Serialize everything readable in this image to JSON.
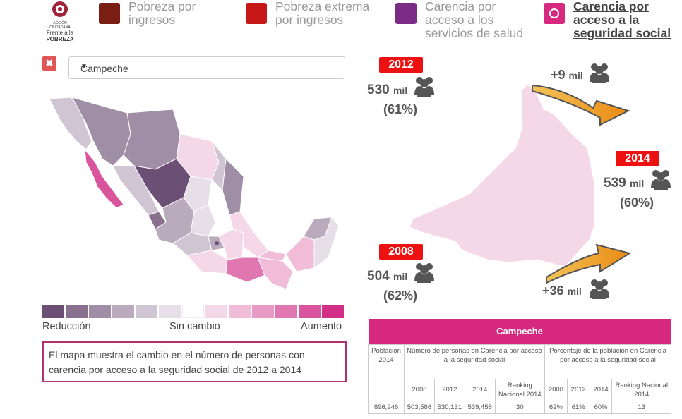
{
  "logo": {
    "line1": "ACCIÓN CIUDADANA",
    "line2": "Frente a la",
    "line3": "POBREZA"
  },
  "legend": [
    {
      "label": "Pobreza por ingresos",
      "color": "#7a1e13"
    },
    {
      "label": "Pobreza extrema por ingresos",
      "color": "#c71818"
    },
    {
      "label": "Carencia por acceso a los servicios de salud",
      "color": "#7b2a86"
    },
    {
      "label": "Carencia por acceso a la seguridad social",
      "color": "#d6287f"
    }
  ],
  "filter": {
    "clear": "✖",
    "selected": "Campeche",
    "arrow": "▼"
  },
  "scale": {
    "colors": [
      "#6b4f75",
      "#8a708f",
      "#a08ea6",
      "#b9aabd",
      "#d0c6d3",
      "#e6dfe8",
      "#ffffff",
      "#f5d8e7",
      "#f0bcd8",
      "#e89ac4",
      "#e077b0",
      "#d9549c",
      "#d22f88"
    ],
    "low": "Reducción",
    "mid": "Sin cambio",
    "high": "Aumento"
  },
  "note": "El mapa muestra el cambio en el número de personas con carencia por acceso a la seguridad social de 2012 a 2014",
  "detail": {
    "y2012": {
      "year": "2012",
      "value": "530",
      "unit": "mil",
      "pct": "(61%)"
    },
    "y2014": {
      "year": "2014",
      "value": "539",
      "unit": "mil",
      "pct": "(60%)"
    },
    "y2008": {
      "year": "2008",
      "value": "504",
      "unit": "mil",
      "pct": "(62%)"
    },
    "delta_top": {
      "value": "+9",
      "unit": "mil"
    },
    "delta_bottom": {
      "value": "+36",
      "unit": "mil"
    }
  },
  "table": {
    "title": "Campeche",
    "pop_header": "Población 2014",
    "num_header": "Número de personas en Carencia por acceso a la seguridad social",
    "pct_header": "Porcentaje de la población en Carencia por acceso a la seguridad social",
    "sub": [
      "2008",
      "2012",
      "2014",
      "Ranking Nacional 2014",
      "2008",
      "2012",
      "2014",
      "Ranking Nacional 2014"
    ],
    "row": [
      "896,946",
      "503,586",
      "530,131",
      "539,458",
      "30",
      "62%",
      "61%",
      "60%",
      "13"
    ]
  }
}
